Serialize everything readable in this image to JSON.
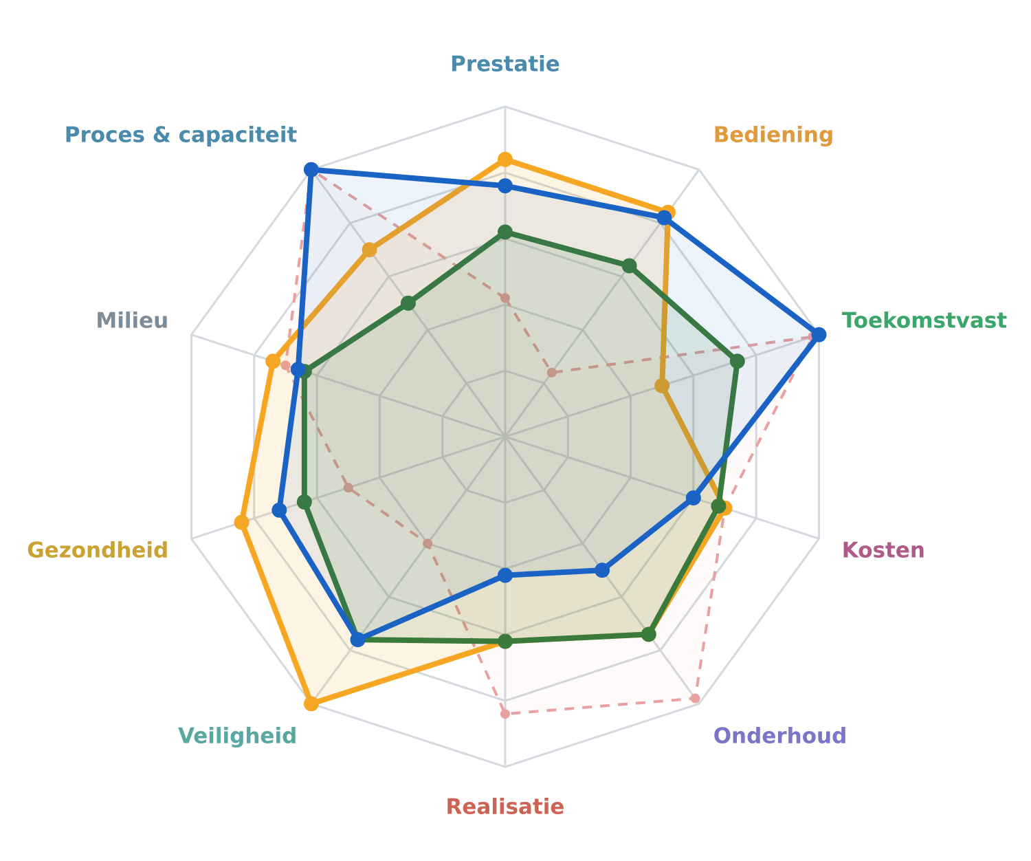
{
  "chart_data": {
    "type": "radar",
    "axes": [
      {
        "label": "Prestatie",
        "color": "#4a8aac"
      },
      {
        "label": "Bediening",
        "color": "#e09a3a"
      },
      {
        "label": "Toekomstvast",
        "color": "#3aa66a"
      },
      {
        "label": "Kosten",
        "color": "#b05a8a"
      },
      {
        "label": "Onderhoud",
        "color": "#7b74c8"
      },
      {
        "label": "Realisatie",
        "color": "#cc6455"
      },
      {
        "label": "Veiligheid",
        "color": "#57a8a0"
      },
      {
        "label": "Gezondheid",
        "color": "#c9a232"
      },
      {
        "label": "Milieu",
        "color": "#7d8c99"
      },
      {
        "label": "Proces & capaciteit",
        "color": "#4a8aac"
      }
    ],
    "range": [
      0,
      5
    ],
    "rings": 5,
    "grid": true,
    "series": [
      {
        "color": "#e8a0a0",
        "dash": true,
        "fill_opacity": 0.05,
        "values": [
          2.1,
          1.2,
          4.9,
          3.5,
          4.9,
          4.2,
          2.0,
          2.5,
          3.5,
          5.0
        ]
      },
      {
        "color": "#f5a623",
        "dash": false,
        "fill_opacity": 0.12,
        "values": [
          4.2,
          4.2,
          2.5,
          3.5,
          3.7,
          3.1,
          5.0,
          4.2,
          3.7,
          3.5
        ]
      },
      {
        "color": "#3a7a3a",
        "dash": false,
        "fill_opacity": 0.12,
        "values": [
          3.1,
          3.2,
          3.7,
          3.4,
          3.7,
          3.1,
          3.8,
          3.2,
          3.2,
          2.5
        ]
      },
      {
        "color": "#1a62c4",
        "dash": false,
        "fill_opacity": 0.08,
        "values": [
          3.8,
          4.1,
          5.0,
          3.0,
          2.5,
          2.1,
          3.8,
          3.6,
          3.3,
          5.0
        ]
      }
    ]
  }
}
